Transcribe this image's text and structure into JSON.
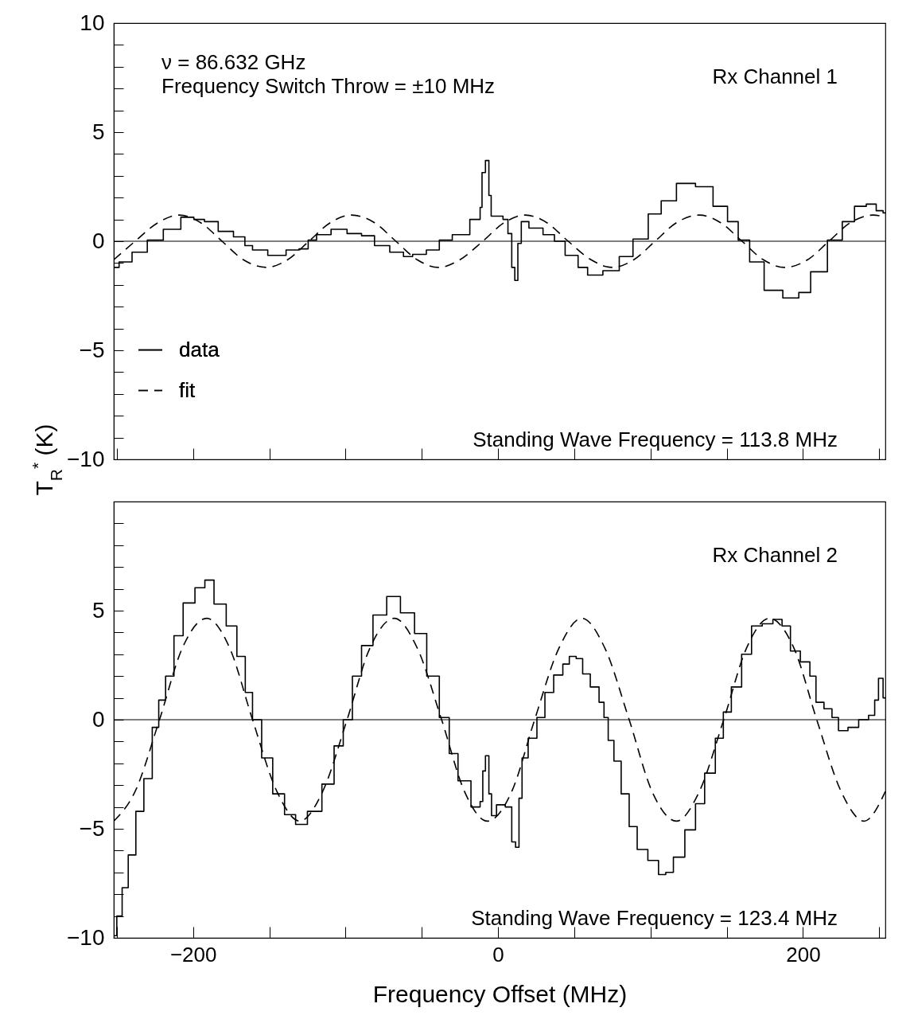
{
  "chart_data": [
    {
      "type": "line",
      "ylabel": "T$_{R}$$^{*}$ (K)",
      "legend": "left",
      "tick_labels": "y",
      "annotations": [
        "ν = 86.632 GHz",
        "Frequency Switch Throw = ±10 MHz",
        "Rx Channel 1",
        "Standing Wave Frequency = 113.8 MHz"
      ],
      "xlim": [
        -252,
        254
      ],
      "xticks": [
        {
          "value": -250,
          "label": null
        },
        -200,
        {
          "value": -150,
          "label": null
        },
        {
          "value": -100,
          "label": null
        },
        {
          "value": -50,
          "label": null
        },
        0,
        {
          "value": 50,
          "label": null
        },
        {
          "value": 100,
          "label": null
        },
        {
          "value": 150,
          "label": null
        },
        200,
        {
          "value": 250,
          "label": null
        }
      ],
      "ylim": [
        -10,
        10
      ],
      "yticks": [
        -10,
        {
          "value": -9,
          "label": null
        },
        {
          "value": -8,
          "label": null
        },
        {
          "value": -7,
          "label": null
        },
        {
          "value": -6,
          "label": null
        },
        -5,
        {
          "value": -4,
          "label": null
        },
        {
          "value": -3,
          "label": null
        },
        {
          "value": -2,
          "label": null
        },
        {
          "value": -1,
          "label": null
        },
        0,
        {
          "value": 1,
          "label": null
        },
        {
          "value": 2,
          "label": null
        },
        {
          "value": 3,
          "label": null
        },
        {
          "value": 4,
          "label": null
        },
        5,
        {
          "value": 6,
          "label": null
        },
        {
          "value": 7,
          "label": null
        },
        {
          "value": 8,
          "label": null
        },
        {
          "value": 9,
          "label": null
        },
        10
      ],
      "ref_lines": [
        {
          "axis": "y",
          "value": 0,
          "color": "#000000"
        }
      ],
      "series": [
        {
          "name": "data",
          "type": "step",
          "color": "#000000",
          "line_style": "solid",
          "x": [
            -252,
            -245,
            -235,
            -225,
            -214,
            -202,
            -197,
            -188,
            -179,
            -168,
            -164,
            -158,
            -144,
            -134,
            -127,
            -122,
            -116,
            -103,
            -95,
            -84,
            -78,
            -64,
            -60,
            -52,
            -42,
            -35,
            -25,
            -12,
            -11.5,
            -9.5,
            -7,
            -5,
            -4,
            1.5,
            5,
            8,
            10,
            12,
            14,
            16.5,
            24,
            35,
            39,
            49,
            56,
            61.5,
            76,
            83,
            94,
            103,
            111,
            123,
            136,
            146,
            155,
            160,
            170,
            179,
            194.5,
            200,
            210,
            222,
            229.5,
            238,
            245,
            251,
            254
          ],
          "values": [
            -1.2,
            -0.95,
            -0.5,
            0.05,
            0.55,
            1.1,
            1.0,
            0.9,
            0.45,
            0.2,
            -0.2,
            -0.4,
            -0.65,
            -0.4,
            -0.35,
            0.05,
            0.3,
            0.55,
            0.35,
            0.25,
            -0.2,
            -0.5,
            -0.7,
            -0.6,
            -0.4,
            0.05,
            0.3,
            1.0,
            1.55,
            3.15,
            3.7,
            2.1,
            1.15,
            1.15,
            1.0,
            0.35,
            -1.2,
            -1.8,
            -0.1,
            0.9,
            0.6,
            0.3,
            0.0,
            -0.65,
            -1.2,
            -1.55,
            -1.35,
            -0.7,
            0.1,
            1.25,
            1.85,
            2.65,
            2.5,
            1.6,
            0.9,
            0.05,
            -0.95,
            -2.25,
            -2.6,
            -2.35,
            -1.4,
            0.05,
            0.9,
            1.6,
            1.7,
            1.4,
            1.3
          ]
        },
        {
          "name": "fit",
          "type": "line",
          "color": "#000000",
          "line_style": "dashed",
          "x": [
            -252,
            -238,
            -223,
            -209,
            -195,
            -181,
            -167,
            -152,
            -138,
            -124,
            -110,
            -96,
            -81,
            -67,
            -53,
            -39,
            -25,
            -10,
            4,
            18,
            32,
            46,
            61,
            75,
            89,
            103,
            117,
            132,
            146,
            160,
            174,
            188,
            203,
            217,
            231,
            246,
            254
          ],
          "values": [
            -0.85,
            0,
            0.85,
            1.2,
            0.85,
            0,
            -0.85,
            -1.2,
            -0.85,
            0,
            0.85,
            1.2,
            0.85,
            0,
            -0.85,
            -1.2,
            -0.85,
            0,
            0.85,
            1.2,
            0.85,
            0,
            -0.85,
            -1.2,
            -0.85,
            0,
            0.85,
            1.2,
            0.85,
            0,
            -0.85,
            -1.2,
            -0.85,
            0,
            0.85,
            1.2,
            1.1
          ]
        }
      ]
    },
    {
      "type": "line",
      "xlabel": "Frequency Offset (MHz)",
      "annotations": [
        "Rx Channel 2",
        "Standing Wave Frequency = 123.4 MHz"
      ],
      "xlim": [
        -252,
        254
      ],
      "xticks": [
        {
          "value": -250,
          "label": null
        },
        -200,
        {
          "value": -150,
          "label": null
        },
        {
          "value": -100,
          "label": null
        },
        {
          "value": -50,
          "label": null
        },
        0,
        {
          "value": 50,
          "label": null
        },
        {
          "value": 100,
          "label": null
        },
        {
          "value": 150,
          "label": null
        },
        200,
        {
          "value": 250,
          "label": null
        }
      ],
      "ylim": [
        -10,
        10
      ],
      "yticks": [
        -10,
        {
          "value": -9,
          "label": null
        },
        {
          "value": -8,
          "label": null
        },
        {
          "value": -7,
          "label": null
        },
        {
          "value": -6,
          "label": null
        },
        -5,
        {
          "value": -4,
          "label": null
        },
        {
          "value": -3,
          "label": null
        },
        {
          "value": -2,
          "label": null
        },
        {
          "value": -1,
          "label": null
        },
        0,
        {
          "value": 1,
          "label": null
        },
        {
          "value": 2,
          "label": null
        },
        {
          "value": 3,
          "label": null
        },
        {
          "value": 4,
          "label": null
        },
        5,
        {
          "value": 6,
          "label": null
        },
        {
          "value": 7,
          "label": null
        },
        {
          "value": 8,
          "label": null
        },
        {
          "value": 9,
          "label": null
        },
        {
          "value": 10,
          "label": null
        }
      ],
      "ref_lines": [
        {
          "axis": "y",
          "value": 0,
          "color": "#000000"
        }
      ],
      "series": [
        {
          "type": "step",
          "color": "#000000",
          "line_style": "solid",
          "x": [
            -252,
            -248,
            -245,
            -240,
            -235,
            -229.5,
            -224,
            -221,
            -215,
            -210,
            -203,
            -194.5,
            -190,
            -182.5,
            -174,
            -168.5,
            -163,
            -159,
            -151,
            -144.5,
            -135.5,
            -130,
            -120,
            -111,
            -104,
            -99,
            -92,
            -87,
            -77,
            -69,
            -59,
            -50.5,
            -43,
            -34,
            -30,
            -22.5,
            -13,
            -10.5,
            -9.5,
            -7,
            -5,
            -3.5,
            1.5,
            8,
            10,
            13,
            14.5,
            17,
            22.5,
            28.5,
            33,
            40,
            45,
            48.5,
            54,
            57,
            64,
            68.5,
            70.5,
            74,
            78,
            83.5,
            88.5,
            94,
            102.5,
            108,
            112,
            118,
            127,
            132,
            139,
            146,
            149.5,
            156.5,
            163,
            169.5,
            177,
            183.5,
            189,
            194.5,
            202,
            207,
            210,
            217.5,
            220.5,
            226,
            233,
            240,
            246,
            248,
            251,
            254
          ],
          "values": [
            -9.9,
            -9.0,
            -7.7,
            -6.2,
            -4.2,
            -2.7,
            -0.35,
            0.9,
            2.0,
            3.85,
            5.35,
            6.05,
            6.4,
            5.3,
            4.3,
            2.9,
            1.25,
            0.0,
            -1.75,
            -3.4,
            -4.35,
            -4.8,
            -4.2,
            -2.95,
            -1.2,
            0.0,
            2.0,
            3.4,
            4.8,
            5.65,
            4.9,
            3.95,
            2.0,
            0.1,
            -1.55,
            -2.8,
            -4.0,
            -3.75,
            -2.35,
            -1.65,
            -3.4,
            -4.4,
            -3.9,
            -4.0,
            -5.6,
            -5.85,
            -3.6,
            -1.75,
            -0.85,
            0.1,
            1.25,
            2.05,
            2.55,
            2.9,
            2.8,
            2.1,
            1.5,
            0.8,
            0.1,
            -0.95,
            -1.9,
            -3.4,
            -4.9,
            -5.95,
            -6.45,
            -7.1,
            -7.0,
            -6.3,
            -5.05,
            -3.85,
            -2.45,
            -0.85,
            0.35,
            1.5,
            3.0,
            4.3,
            4.4,
            4.6,
            4.3,
            3.15,
            2.65,
            2.0,
            0.8,
            0.5,
            0.1,
            -0.5,
            -0.35,
            0.0,
            0.2,
            0.9,
            1.9,
            1.0
          ]
        },
        {
          "type": "line",
          "color": "#000000",
          "line_style": "dashed",
          "x": [
            -252,
            -238,
            -222,
            -207,
            -191,
            -176,
            -161,
            -145,
            -130,
            -115,
            -99,
            -84,
            -68,
            -53,
            -37,
            -22,
            -7,
            9,
            24,
            40,
            55,
            70,
            86,
            101,
            117,
            132,
            148,
            163,
            178,
            194,
            209,
            225,
            240,
            254
          ],
          "values": [
            -4.65,
            -3.29,
            0,
            3.29,
            4.65,
            3.29,
            0,
            -3.29,
            -4.65,
            -3.29,
            0,
            3.29,
            4.65,
            3.29,
            0,
            -3.29,
            -4.65,
            -3.29,
            0,
            3.29,
            4.65,
            3.29,
            0,
            -3.29,
            -4.65,
            -3.29,
            0,
            3.29,
            4.65,
            3.29,
            0,
            -3.29,
            -4.65,
            -3.29
          ]
        }
      ]
    }
  ]
}
